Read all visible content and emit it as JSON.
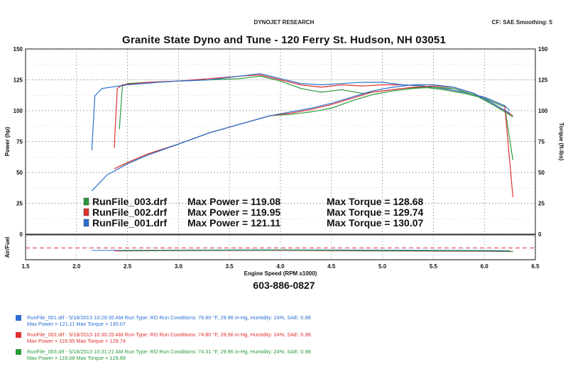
{
  "header": {
    "brand": "DYNOJET RESEARCH",
    "settings": "CF: SAE  Smoothing: 5",
    "title": "Granite State Dyno and Tune - 120 Ferry St. Hudson, NH 03051",
    "phone": "603-886-0827"
  },
  "colors": {
    "run_003": "#2a9a3c",
    "run_002": "#e03030",
    "run_001": "#2a6fd0"
  },
  "chart_data": {
    "type": "line",
    "xlabel": "Engine Speed (RPM x1000)",
    "xlim": [
      1.5,
      6.5
    ],
    "xticks": [
      "1.5",
      "2.0",
      "2.5",
      "3.0",
      "3.5",
      "4.0",
      "4.5",
      "5.0",
      "5.5",
      "6.0",
      "6.5"
    ],
    "main_panel": {
      "ylabel_left": "Power (hp)",
      "ylabel_right": "Torque (ft-lbs)",
      "ylim": [
        0,
        150
      ],
      "yticks": [
        "0",
        "25",
        "50",
        "75",
        "100",
        "125",
        "150"
      ],
      "series": [
        {
          "name": "RunFile_003.drf",
          "quantity": "torque",
          "color": "#2a9a3c",
          "x": [
            2.42,
            2.45,
            2.5,
            2.7,
            3.0,
            3.3,
            3.6,
            3.8,
            4.0,
            4.2,
            4.4,
            4.6,
            4.8,
            5.0,
            5.2,
            5.4,
            5.6,
            5.8,
            6.0,
            6.2,
            6.28
          ],
          "y": [
            85,
            120,
            122,
            123,
            124,
            125,
            126,
            128,
            124,
            118,
            115,
            117,
            114,
            116,
            118,
            119,
            117,
            114,
            110,
            103,
            60
          ]
        },
        {
          "name": "RunFile_002.drf",
          "quantity": "torque",
          "color": "#e03030",
          "x": [
            2.37,
            2.4,
            2.45,
            2.7,
            3.0,
            3.3,
            3.6,
            3.8,
            4.0,
            4.2,
            4.4,
            4.6,
            4.8,
            5.0,
            5.2,
            5.4,
            5.6,
            5.8,
            6.0,
            6.2,
            6.28
          ],
          "y": [
            70,
            118,
            121,
            123,
            124,
            126,
            128,
            129,
            125,
            121,
            119,
            121,
            120,
            121,
            121,
            120,
            118,
            115,
            111,
            104,
            30
          ]
        },
        {
          "name": "RunFile_001.drf",
          "quantity": "torque",
          "color": "#2a6fd0",
          "x": [
            2.15,
            2.18,
            2.25,
            2.5,
            2.8,
            3.0,
            3.3,
            3.6,
            3.8,
            4.0,
            4.2,
            4.4,
            4.6,
            4.8,
            5.0,
            5.2,
            5.4,
            5.6,
            5.8,
            6.0,
            6.2,
            6.25
          ],
          "y": [
            68,
            112,
            118,
            121,
            123,
            124,
            125,
            128,
            130,
            126,
            122,
            121,
            122,
            123,
            123,
            121,
            120,
            118,
            115,
            111,
            104,
            100
          ]
        },
        {
          "name": "RunFile_003.drf",
          "quantity": "power",
          "color": "#2a9a3c",
          "x": [
            2.42,
            2.5,
            2.7,
            3.0,
            3.3,
            3.6,
            3.9,
            4.1,
            4.3,
            4.5,
            4.7,
            4.9,
            5.1,
            5.3,
            5.5,
            5.7,
            5.9,
            6.1,
            6.28
          ],
          "y": [
            55,
            58,
            65,
            73,
            82,
            89,
            96,
            97,
            99,
            102,
            108,
            113,
            116,
            118,
            119,
            118,
            113,
            104,
            95
          ]
        },
        {
          "name": "RunFile_002.drf",
          "quantity": "power",
          "color": "#e03030",
          "x": [
            2.37,
            2.5,
            2.7,
            3.0,
            3.3,
            3.6,
            3.9,
            4.1,
            4.3,
            4.5,
            4.7,
            4.9,
            5.1,
            5.3,
            5.5,
            5.7,
            5.9,
            6.1,
            6.28
          ],
          "y": [
            53,
            58,
            65,
            73,
            82,
            89,
            96,
            98,
            101,
            105,
            110,
            115,
            117,
            119,
            120,
            119,
            114,
            105,
            96
          ]
        },
        {
          "name": "RunFile_001.drf",
          "quantity": "power",
          "color": "#2a6fd0",
          "x": [
            2.15,
            2.3,
            2.5,
            2.7,
            3.0,
            3.3,
            3.6,
            3.9,
            4.1,
            4.3,
            4.5,
            4.7,
            4.9,
            5.1,
            5.3,
            5.5,
            5.7,
            5.9,
            6.1,
            6.25
          ],
          "y": [
            35,
            48,
            57,
            64,
            73,
            82,
            89,
            96,
            99,
            102,
            106,
            111,
            116,
            119,
            121,
            121,
            119,
            114,
            105,
            98
          ]
        }
      ],
      "annotations": [
        {
          "file": "RunFile_003.drf",
          "color": "#2a9a3c",
          "power_text": "Max Power = 119.08",
          "torque_text": "Max Torque = 128.68"
        },
        {
          "file": "RunFile_002.drf",
          "color": "#e03030",
          "power_text": "Max Power = 119.95",
          "torque_text": "Max Torque = 129.74"
        },
        {
          "file": "RunFile_001.drf",
          "color": "#2a6fd0",
          "power_text": "Max Power = 121.11",
          "torque_text": "Max Torque = 130.07"
        }
      ]
    },
    "afr_panel": {
      "ylabel": "Air/Fuel",
      "ylim": [
        10,
        18
      ],
      "series": [
        {
          "name": "RunFile_001.drf",
          "color": "#2a6fd0",
          "x": [
            2.15,
            3.0,
            4.0,
            5.0,
            6.0,
            6.25
          ],
          "y": [
            13.0,
            13.1,
            13.2,
            13.1,
            13.0,
            12.9
          ]
        },
        {
          "name": "RunFile_002.drf",
          "color": "#e03030",
          "x": [
            2.37,
            3.0,
            4.0,
            5.0,
            6.0,
            6.28
          ],
          "y": [
            12.8,
            12.9,
            13.0,
            12.8,
            12.7,
            12.6
          ]
        },
        {
          "name": "RunFile_003.drf",
          "color": "#2a9a3c",
          "x": [
            2.42,
            3.0,
            4.0,
            5.0,
            6.0,
            6.28
          ],
          "y": [
            12.9,
            13.0,
            13.1,
            12.9,
            12.8,
            12.7
          ]
        }
      ]
    }
  },
  "runs": [
    {
      "color": "#2a6fd0",
      "line1": "RunFile_001.drf - 5/18/2013 10:29:35 AM  Run Type: RO  Run Conditions: 76.60 °F, 29.96 in-Hg,  Humidity:  24%, SAE: 0.98",
      "line2": "Max Power = 121.11  Max Torque = 130.07"
    },
    {
      "color": "#e03030",
      "line1": "RunFile_002.drf - 5/18/2013 10:30:25 AM  Run Type: RO  Run Conditions: 74.80 °F, 29.96 in-Hg,  Humidity:  24%, SAE: 0.98",
      "line2": "Max Power = 119.95  Max Torque = 129.74"
    },
    {
      "color": "#2a9a3c",
      "line1": "RunFile_003.drf - 5/18/2013 10:31:21 AM  Run Type: RO  Run Conditions: 74.31 °F, 29.96 in-Hg,  Humidity:  24%, SAE: 0.98",
      "line2": "Max Power = 119.08  Max Torque = 128.68"
    }
  ]
}
